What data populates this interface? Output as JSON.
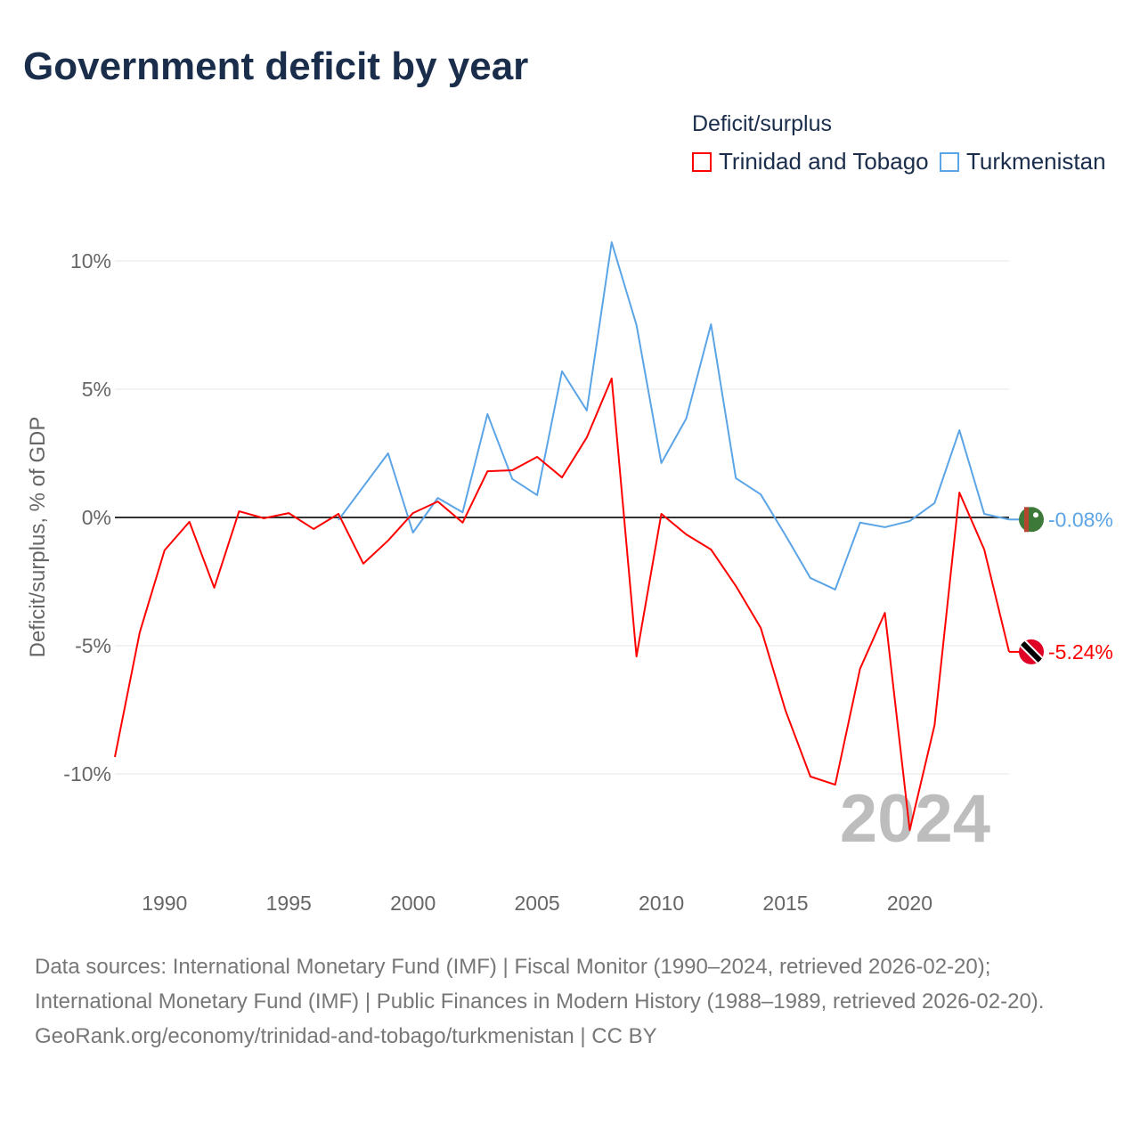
{
  "chart_data": {
    "type": "line",
    "title": "Government deficit by year",
    "ylabel": "Deficit/surplus, % of GDP",
    "xlabel": "",
    "xlim": [
      1988,
      2024
    ],
    "ylim": [
      -13,
      11
    ],
    "x_ticks": [
      1990,
      1995,
      2000,
      2005,
      2010,
      2015,
      2020
    ],
    "y_ticks": [
      10,
      5,
      0,
      -5,
      -10
    ],
    "y_tick_labels": [
      "10%",
      "5%",
      "0%",
      "-5%",
      "-10%"
    ],
    "grid": true,
    "legend_title": "Deficit/surplus",
    "legend_placement": "top-right",
    "year_label": "2024",
    "series": [
      {
        "name": "Trinidad and Tobago",
        "color": "#ff0000",
        "end_label": "-5.24%",
        "x": [
          1988,
          1989,
          1990,
          1991,
          1992,
          1993,
          1994,
          1995,
          1996,
          1997,
          1998,
          1999,
          2000,
          2001,
          2002,
          2003,
          2004,
          2005,
          2006,
          2007,
          2008,
          2009,
          2010,
          2011,
          2012,
          2013,
          2014,
          2015,
          2016,
          2017,
          2018,
          2019,
          2020,
          2021,
          2022,
          2023,
          2024
        ],
        "values": [
          -9.34,
          -4.48,
          -1.28,
          -0.17,
          -2.74,
          0.24,
          -0.03,
          0.17,
          -0.45,
          0.14,
          -1.8,
          -0.9,
          0.17,
          0.62,
          -0.2,
          1.8,
          1.84,
          2.36,
          1.56,
          3.12,
          5.42,
          -5.42,
          0.14,
          -0.66,
          -1.25,
          -2.67,
          -4.3,
          -7.53,
          -10.1,
          -10.42,
          -5.9,
          -3.72,
          -12.19,
          -8.1,
          0.97,
          -1.25,
          -5.24
        ]
      },
      {
        "name": "Turkmenistan",
        "color": "#5ba4e6",
        "end_label": "-0.08%",
        "x": [
          1997,
          1998,
          1999,
          2000,
          2001,
          2002,
          2003,
          2004,
          2005,
          2006,
          2007,
          2008,
          2009,
          2010,
          2011,
          2012,
          2013,
          2014,
          2015,
          2016,
          2017,
          2018,
          2019,
          2020,
          2021,
          2022,
          2023,
          2024
        ],
        "values": [
          -0.1,
          1.2,
          2.5,
          -0.59,
          0.76,
          0.2,
          4.03,
          1.5,
          0.87,
          5.7,
          4.17,
          10.73,
          7.5,
          2.12,
          3.85,
          7.53,
          1.53,
          0.9,
          -0.7,
          -2.36,
          -2.81,
          -0.2,
          -0.38,
          -0.14,
          0.56,
          3.4,
          0.14,
          -0.08
        ]
      }
    ]
  },
  "footer": {
    "sources": "Data sources: International Monetary Fund (IMF) | Fiscal Monitor (1990–2024, retrieved 2026-02-20); International Monetary Fund (IMF) | Public Finances in Modern History (1988–1989, retrieved 2026-02-20).",
    "link": "GeoRank.org/economy/trinidad-and-tobago/turkmenistan | CC BY"
  }
}
